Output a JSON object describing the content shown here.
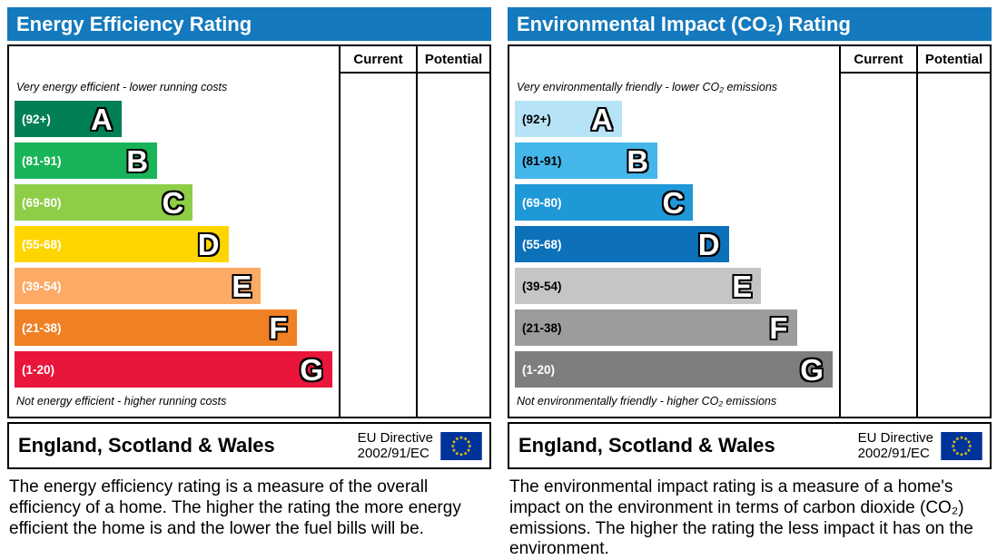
{
  "colors": {
    "header_blue": "#1479bd",
    "eu_flag_blue": "#003399",
    "eu_flag_stars": "#ffcc00"
  },
  "panels": [
    {
      "title": "Energy Efficiency Rating",
      "columns": [
        "Current",
        "Potential"
      ],
      "top_note": "Very energy efficient - lower running costs",
      "bottom_note": "Not energy efficient - higher running costs",
      "bands": [
        {
          "letter": "A",
          "range": "(92+)",
          "color": "#008054",
          "text_color": "#ffffff",
          "width_pct": 33
        },
        {
          "letter": "B",
          "range": "(81-91)",
          "color": "#19b459",
          "text_color": "#ffffff",
          "width_pct": 44
        },
        {
          "letter": "C",
          "range": "(69-80)",
          "color": "#8dce46",
          "text_color": "#ffffff",
          "width_pct": 55
        },
        {
          "letter": "D",
          "range": "(55-68)",
          "color": "#ffd500",
          "text_color": "#ffffff",
          "width_pct": 66
        },
        {
          "letter": "E",
          "range": "(39-54)",
          "color": "#fcaa65",
          "text_color": "#ffffff",
          "width_pct": 76
        },
        {
          "letter": "F",
          "range": "(21-38)",
          "color": "#ef8023",
          "text_color": "#ffffff",
          "width_pct": 87
        },
        {
          "letter": "G",
          "range": "(1-20)",
          "color": "#e9153b",
          "text_color": "#ffffff",
          "width_pct": 98
        }
      ],
      "footer": {
        "region": "England, Scotland & Wales",
        "directive_line1": "EU Directive",
        "directive_line2": "2002/91/EC"
      },
      "description": "The energy efficiency rating is a measure of the overall efficiency of a home. The higher the rating the more energy efficient the home is and the lower the fuel bills will be."
    },
    {
      "title": "Environmental Impact (CO₂) Rating",
      "columns": [
        "Current",
        "Potential"
      ],
      "top_note": "Very environmentally friendly - lower CO₂ emissions",
      "bottom_note": "Not environmentally friendly - higher CO₂ emissions",
      "bands": [
        {
          "letter": "A",
          "range": "(92+)",
          "color": "#b7e3f6",
          "text_color": "#000000",
          "width_pct": 33
        },
        {
          "letter": "B",
          "range": "(81-91)",
          "color": "#45b6e9",
          "text_color": "#000000",
          "width_pct": 44
        },
        {
          "letter": "C",
          "range": "(69-80)",
          "color": "#1f98d8",
          "text_color": "#ffffff",
          "width_pct": 55
        },
        {
          "letter": "D",
          "range": "(55-68)",
          "color": "#0d71b9",
          "text_color": "#ffffff",
          "width_pct": 66
        },
        {
          "letter": "E",
          "range": "(39-54)",
          "color": "#c5c5c5",
          "text_color": "#000000",
          "width_pct": 76
        },
        {
          "letter": "F",
          "range": "(21-38)",
          "color": "#9c9c9c",
          "text_color": "#000000",
          "width_pct": 87
        },
        {
          "letter": "G",
          "range": "(1-20)",
          "color": "#7e7e7e",
          "text_color": "#ffffff",
          "width_pct": 98
        }
      ],
      "footer": {
        "region": "England, Scotland & Wales",
        "directive_line1": "EU Directive",
        "directive_line2": "2002/91/EC"
      },
      "description": "The environmental impact rating is a measure of a home's impact on the environment in terms of carbon dioxide (CO₂) emissions. The higher the rating the less impact it has on the environment."
    }
  ],
  "chart_data": [
    {
      "type": "bar",
      "title": "Energy Efficiency Rating",
      "categories": [
        "A (92+)",
        "B (81-91)",
        "C (69-80)",
        "D (55-68)",
        "E (39-54)",
        "F (21-38)",
        "G (1-20)"
      ],
      "values": [
        33,
        44,
        55,
        66,
        76,
        87,
        98
      ],
      "value_note": "bar lengths as percent of band area; rating scale only, no current/potential markers shown",
      "columns": [
        "Current",
        "Potential"
      ],
      "legend_position": "none",
      "annotations": [
        "Very energy efficient - lower running costs",
        "Not energy efficient - higher running costs",
        "England, Scotland & Wales",
        "EU Directive 2002/91/EC"
      ]
    },
    {
      "type": "bar",
      "title": "Environmental Impact (CO₂) Rating",
      "categories": [
        "A (92+)",
        "B (81-91)",
        "C (69-80)",
        "D (55-68)",
        "E (39-54)",
        "F (21-38)",
        "G (1-20)"
      ],
      "values": [
        33,
        44,
        55,
        66,
        76,
        87,
        98
      ],
      "value_note": "bar lengths as percent of band area; rating scale only, no current/potential markers shown",
      "columns": [
        "Current",
        "Potential"
      ],
      "legend_position": "none",
      "annotations": [
        "Very environmentally friendly - lower CO₂ emissions",
        "Not environmentally friendly - higher CO₂ emissions",
        "England, Scotland & Wales",
        "EU Directive 2002/91/EC"
      ]
    }
  ]
}
